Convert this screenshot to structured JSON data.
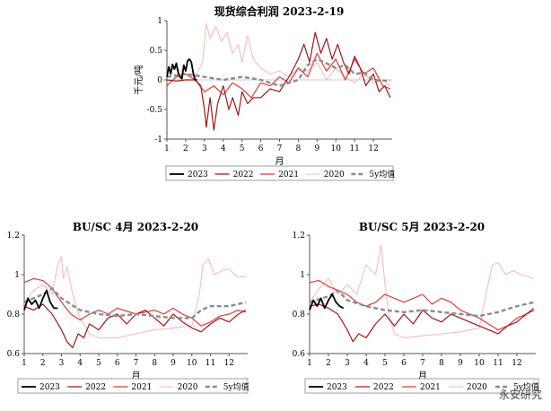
{
  "colors": {
    "y2023": "#000000",
    "y2022": "#a31515",
    "y2021": "#e0393a",
    "y2020": "#f6bcbc",
    "avg5y": "#8c8c8c"
  },
  "watermark": "永安研究",
  "chart_data": [
    {
      "type": "line",
      "title": "现货综合利润 2023-2-19",
      "xlabel": "月",
      "ylabel": "千元/吨",
      "ylim": [
        -1,
        1
      ],
      "yticks": [
        "-1",
        "-0.5",
        "0",
        "0.5",
        "1"
      ],
      "xlim": [
        1,
        13
      ],
      "xticks": [
        "1",
        "2",
        "3",
        "4",
        "5",
        "6",
        "7",
        "8",
        "9",
        "10",
        "11",
        "12"
      ],
      "legend": "bottom",
      "series": [
        {
          "name": "2023",
          "color_key": "y2023",
          "width": 1.8,
          "dash": "",
          "x": [
            1.0,
            1.1,
            1.2,
            1.3,
            1.4,
            1.5,
            1.6,
            1.7,
            1.8,
            1.9,
            2.0,
            2.1,
            2.2,
            2.3,
            2.4,
            2.5,
            2.6
          ],
          "y": [
            0.05,
            0.22,
            0.1,
            0.26,
            0.18,
            0.28,
            0.12,
            0.05,
            0.02,
            0.25,
            0.15,
            0.32,
            0.35,
            0.3,
            0.12,
            0.0,
            0.0
          ]
        },
        {
          "name": "2022",
          "color_key": "y2022",
          "width": 1.2,
          "dash": "",
          "x": [
            1.0,
            1.5,
            2.0,
            2.5,
            2.8,
            3.0,
            3.1,
            3.3,
            3.5,
            3.7,
            4.0,
            4.3,
            4.5,
            4.8,
            5.0,
            5.3,
            5.6,
            6.0,
            6.5,
            7.0,
            7.3,
            7.6,
            8.0,
            8.3,
            8.6,
            8.9,
            9.2,
            9.5,
            9.8,
            10.1,
            10.4,
            10.7,
            11.0,
            11.3,
            11.6,
            12.0,
            12.3,
            12.6,
            12.9
          ],
          "y": [
            0.0,
            -0.02,
            0.0,
            0.0,
            -0.1,
            -0.5,
            -0.8,
            -0.3,
            -0.85,
            -0.4,
            -0.1,
            -0.5,
            -0.3,
            -0.6,
            -0.2,
            -0.4,
            -0.3,
            -0.3,
            -0.15,
            -0.2,
            -0.05,
            0.1,
            0.35,
            0.6,
            0.3,
            0.8,
            0.45,
            0.7,
            0.35,
            0.6,
            0.3,
            0.1,
            0.4,
            0.2,
            -0.1,
            0.1,
            -0.2,
            -0.1,
            -0.3
          ]
        },
        {
          "name": "2021",
          "color_key": "y2021",
          "width": 1.2,
          "dash": "",
          "x": [
            1.0,
            1.5,
            2.0,
            2.5,
            3.0,
            3.5,
            4.0,
            4.5,
            5.0,
            5.5,
            6.0,
            6.5,
            7.0,
            7.5,
            8.0,
            8.5,
            9.0,
            9.5,
            10.0,
            10.5,
            11.0,
            11.5,
            12.0,
            12.5,
            12.9
          ],
          "y": [
            -0.1,
            0.05,
            0.1,
            0.0,
            -0.2,
            -0.1,
            -0.25,
            -0.05,
            -0.15,
            -0.3,
            -0.05,
            -0.1,
            0.05,
            -0.05,
            0.2,
            0.05,
            0.45,
            0.15,
            0.35,
            0.0,
            0.35,
            0.1,
            0.2,
            -0.1,
            -0.15
          ]
        },
        {
          "name": "2020",
          "color_key": "y2020",
          "width": 1.1,
          "dash": "",
          "x": [
            1.0,
            1.5,
            2.0,
            2.5,
            2.9,
            3.1,
            3.3,
            3.6,
            3.9,
            4.2,
            4.5,
            4.8,
            5.0,
            5.3,
            5.6,
            6.0,
            6.5,
            7.0,
            7.5,
            8.0,
            8.5,
            9.0,
            9.5,
            10.0,
            10.5,
            11.0,
            11.5,
            12.0,
            12.5,
            12.9
          ],
          "y": [
            0.15,
            0.2,
            0.1,
            0.05,
            0.3,
            0.95,
            0.7,
            0.9,
            0.65,
            0.8,
            0.45,
            0.6,
            0.3,
            0.75,
            0.35,
            0.2,
            0.1,
            0.15,
            0.05,
            0.2,
            0.15,
            0.3,
            0.0,
            0.2,
            0.05,
            -0.05,
            0.1,
            -0.05,
            0.0,
            -0.1
          ]
        },
        {
          "name": "5y均值",
          "color_key": "avg5y",
          "width": 2.4,
          "dash": "5,3",
          "x": [
            1.0,
            2.0,
            3.0,
            4.0,
            5.0,
            6.0,
            7.0,
            7.5,
            8.0,
            8.5,
            9.0,
            9.5,
            10.0,
            10.5,
            11.0,
            11.5,
            12.0,
            12.9
          ],
          "y": [
            0.05,
            0.1,
            0.05,
            0.0,
            0.05,
            0.0,
            -0.1,
            -0.05,
            0.0,
            0.25,
            0.35,
            0.28,
            0.2,
            0.25,
            0.1,
            0.12,
            0.0,
            -0.02
          ]
        }
      ]
    },
    {
      "type": "line",
      "title": "BU/SC 4月 2023-2-20",
      "xlabel": "月",
      "ylabel": "",
      "ylim": [
        0.6,
        1.2
      ],
      "yticks": [
        "0.6",
        "0.8",
        "1",
        "1.2"
      ],
      "xlim": [
        1,
        13
      ],
      "xticks": [
        "1",
        "2",
        "3",
        "4",
        "5",
        "6",
        "7",
        "8",
        "9",
        "10",
        "11",
        "12"
      ],
      "legend": "bottom",
      "series": [
        {
          "name": "2023",
          "color_key": "y2023",
          "width": 1.8,
          "dash": "",
          "x": [
            1.0,
            1.2,
            1.4,
            1.6,
            1.8,
            2.0,
            2.2,
            2.4,
            2.6,
            2.8
          ],
          "y": [
            0.82,
            0.88,
            0.85,
            0.87,
            0.83,
            0.88,
            0.92,
            0.86,
            0.83,
            0.83
          ]
        },
        {
          "name": "2022",
          "color_key": "y2022",
          "width": 1.2,
          "dash": "",
          "x": [
            1.0,
            1.5,
            2.0,
            2.5,
            3.0,
            3.3,
            3.6,
            3.9,
            4.2,
            4.5,
            5.0,
            5.5,
            6.0,
            6.5,
            7.0,
            7.5,
            8.0,
            8.5,
            9.0,
            9.5,
            10.0,
            10.5,
            11.0,
            11.5,
            12.0,
            12.5,
            12.9
          ],
          "y": [
            0.84,
            0.82,
            0.85,
            0.8,
            0.72,
            0.66,
            0.63,
            0.7,
            0.68,
            0.75,
            0.72,
            0.78,
            0.8,
            0.75,
            0.8,
            0.82,
            0.78,
            0.74,
            0.8,
            0.76,
            0.73,
            0.71,
            0.75,
            0.78,
            0.76,
            0.8,
            0.82
          ]
        },
        {
          "name": "2021",
          "color_key": "y2021",
          "width": 1.2,
          "dash": "",
          "x": [
            1.0,
            1.5,
            2.0,
            2.5,
            3.0,
            3.5,
            4.0,
            4.5,
            5.0,
            5.5,
            6.0,
            7.0,
            8.0,
            8.5,
            9.0,
            9.5,
            10.0,
            10.5,
            11.0,
            11.5,
            12.0,
            12.5,
            12.9
          ],
          "y": [
            0.96,
            0.98,
            0.97,
            0.93,
            0.86,
            0.8,
            0.77,
            0.8,
            0.82,
            0.8,
            0.83,
            0.8,
            0.82,
            0.8,
            0.83,
            0.8,
            0.78,
            0.74,
            0.76,
            0.79,
            0.8,
            0.82,
            0.81
          ]
        },
        {
          "name": "2020",
          "color_key": "y2020",
          "width": 1.1,
          "dash": "",
          "x": [
            1.0,
            1.5,
            2.0,
            2.5,
            2.8,
            3.0,
            3.1,
            3.3,
            3.6,
            4.0,
            4.5,
            5.0,
            6.0,
            7.0,
            8.0,
            9.0,
            10.0,
            10.4,
            10.6,
            10.9,
            11.2,
            11.6,
            12.0,
            12.4,
            12.9
          ],
          "y": [
            0.85,
            0.92,
            0.95,
            0.9,
            1.05,
            1.09,
            0.98,
            1.04,
            0.9,
            0.78,
            0.7,
            0.68,
            0.68,
            0.7,
            0.72,
            0.73,
            0.74,
            0.9,
            1.05,
            1.08,
            1.0,
            1.02,
            1.03,
            0.99,
            0.99
          ]
        },
        {
          "name": "5y均值",
          "color_key": "avg5y",
          "width": 2.4,
          "dash": "5,3",
          "x": [
            1.0,
            2.0,
            2.5,
            3.0,
            4.0,
            5.0,
            6.0,
            7.0,
            8.0,
            9.0,
            10.0,
            10.5,
            11.0,
            12.0,
            12.9
          ],
          "y": [
            0.86,
            0.9,
            0.93,
            0.88,
            0.82,
            0.8,
            0.79,
            0.8,
            0.79,
            0.78,
            0.78,
            0.82,
            0.84,
            0.84,
            0.86
          ]
        }
      ]
    },
    {
      "type": "line",
      "title": "BU/SC 5月 2023-2-20",
      "xlabel": "月",
      "ylabel": "",
      "ylim": [
        0.6,
        1.2
      ],
      "yticks": [
        "0.6",
        "0.8",
        "1",
        "1.2"
      ],
      "xlim": [
        1,
        13
      ],
      "xticks": [
        "1",
        "2",
        "3",
        "4",
        "5",
        "6",
        "7",
        "8",
        "9",
        "10",
        "11",
        "12"
      ],
      "legend": "bottom",
      "series": [
        {
          "name": "2023",
          "color_key": "y2023",
          "width": 1.8,
          "dash": "",
          "x": [
            1.0,
            1.2,
            1.4,
            1.6,
            1.8,
            2.0,
            2.2,
            2.4,
            2.6,
            2.8
          ],
          "y": [
            0.82,
            0.87,
            0.84,
            0.88,
            0.83,
            0.87,
            0.9,
            0.86,
            0.84,
            0.83
          ]
        },
        {
          "name": "2022",
          "color_key": "y2022",
          "width": 1.2,
          "dash": "",
          "x": [
            1.0,
            1.5,
            2.0,
            2.5,
            3.0,
            3.3,
            3.6,
            4.0,
            4.5,
            5.0,
            5.5,
            6.0,
            6.5,
            7.0,
            7.5,
            8.0,
            8.5,
            9.0,
            9.5,
            10.0,
            10.5,
            11.0,
            11.5,
            12.0,
            12.5,
            12.9
          ],
          "y": [
            0.84,
            0.85,
            0.83,
            0.8,
            0.72,
            0.66,
            0.7,
            0.68,
            0.75,
            0.8,
            0.74,
            0.8,
            0.75,
            0.82,
            0.78,
            0.76,
            0.8,
            0.78,
            0.76,
            0.74,
            0.72,
            0.7,
            0.74,
            0.76,
            0.8,
            0.82
          ]
        },
        {
          "name": "2021",
          "color_key": "y2021",
          "width": 1.2,
          "dash": "",
          "x": [
            1.0,
            1.5,
            2.0,
            2.5,
            3.0,
            3.5,
            4.0,
            4.5,
            5.0,
            5.5,
            6.0,
            6.5,
            7.0,
            7.5,
            8.0,
            8.5,
            9.0,
            9.5,
            10.0,
            10.5,
            11.0,
            11.5,
            12.0,
            12.5,
            12.9
          ],
          "y": [
            0.96,
            0.97,
            0.94,
            0.92,
            0.9,
            0.86,
            0.84,
            0.86,
            0.9,
            0.88,
            0.86,
            0.88,
            0.9,
            0.85,
            0.88,
            0.86,
            0.82,
            0.8,
            0.78,
            0.75,
            0.72,
            0.74,
            0.78,
            0.8,
            0.83
          ]
        },
        {
          "name": "2020",
          "color_key": "y2020",
          "width": 1.1,
          "dash": "",
          "x": [
            1.0,
            1.5,
            2.0,
            2.5,
            3.0,
            3.5,
            4.0,
            4.5,
            4.8,
            5.0,
            5.2,
            5.5,
            6.0,
            7.0,
            8.0,
            9.0,
            10.0,
            10.4,
            10.7,
            11.0,
            11.4,
            11.8,
            12.2,
            12.6,
            12.9
          ],
          "y": [
            0.86,
            0.93,
            0.98,
            0.9,
            0.95,
            0.9,
            1.05,
            1.0,
            1.15,
            0.95,
            0.8,
            0.7,
            0.68,
            0.69,
            0.7,
            0.71,
            0.73,
            0.92,
            1.05,
            1.06,
            1.0,
            1.02,
            1.0,
            0.99,
            0.98
          ]
        },
        {
          "name": "5y均值",
          "color_key": "avg5y",
          "width": 2.4,
          "dash": "5,3",
          "x": [
            1.0,
            2.0,
            2.5,
            3.0,
            4.0,
            5.0,
            6.0,
            7.0,
            8.0,
            9.0,
            10.0,
            10.5,
            11.0,
            12.0,
            12.9
          ],
          "y": [
            0.86,
            0.89,
            0.92,
            0.87,
            0.84,
            0.82,
            0.81,
            0.82,
            0.81,
            0.8,
            0.79,
            0.8,
            0.81,
            0.84,
            0.86
          ]
        }
      ]
    }
  ]
}
